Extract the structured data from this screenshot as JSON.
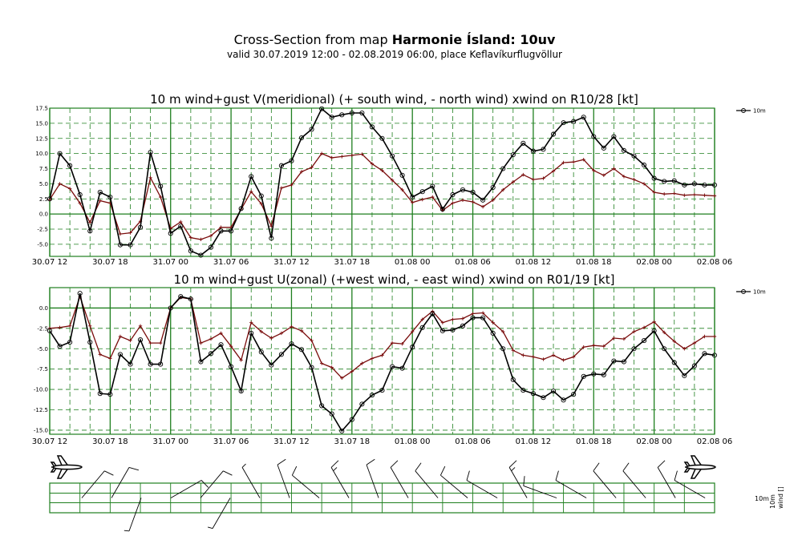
{
  "header": {
    "title_prefix": "Cross-Section from map ",
    "title_bold": "Harmonie Ísland: 10uv",
    "subtitle": "valid 30.07.2019 12:00 - 02.08.2019 06:00, place Keflavíkurflugvöllur"
  },
  "colors": {
    "grid": "#1e7f1e",
    "wind": "#000000",
    "gust": "#7a0c0c"
  },
  "x_ticks": [
    "30.07 12",
    "30.07 18",
    "31.07 00",
    "31.07 06",
    "31.07 12",
    "31.07 18",
    "01.08 00",
    "01.08 06",
    "01.08 12",
    "01.08 18",
    "02.08 00",
    "02.08 06"
  ],
  "chart_data": [
    {
      "type": "line",
      "title": "10 m wind+gust V(meridional) (+ south wind, - north wind) xwind on R10/28 [kt]",
      "x": "hourly steps from 30.07.2019 12:00 to 02.08.2019 06:00",
      "ylim": [
        -7,
        17.5
      ],
      "yticks": [
        "17.5",
        "15.0",
        "12.5",
        "10.0",
        "7.5",
        "5.0",
        "2.5",
        "0.0",
        "-2.5",
        "-5.0"
      ],
      "legend": "10m",
      "series": [
        {
          "name": "10m",
          "marker": "circle",
          "values": [
            2.5,
            10,
            8,
            3.2,
            -2.8,
            3.6,
            2.8,
            -5.1,
            -5.1,
            -2.2,
            10.2,
            4.6,
            -3.2,
            -2,
            -6.1,
            -6.8,
            -5.5,
            -2.8,
            -2.8,
            0.9,
            6.2,
            3,
            -4,
            8,
            8.8,
            12.6,
            14,
            17.4,
            16,
            16.4,
            16.7,
            16.7,
            14.4,
            12.5,
            9.6,
            6.4,
            2.8,
            3.7,
            4.6,
            0.8,
            3.2,
            4,
            3.6,
            2.3,
            4.4,
            7.5,
            9.8,
            11.7,
            10.4,
            10.7,
            13.2,
            15.1,
            15.3,
            16,
            12.8,
            10.9,
            12.8,
            10.5,
            9.6,
            8.1,
            5.9,
            5.4,
            5.5,
            4.8,
            5,
            4.8,
            4.8
          ]
        },
        {
          "name": "",
          "marker": "plus",
          "values": [
            2.4,
            5,
            4.2,
            1.8,
            -1.4,
            2.2,
            1.8,
            -3.3,
            -3.1,
            -1.2,
            6,
            2.8,
            -2.4,
            -1.3,
            -3.9,
            -4.2,
            -3.6,
            -2.2,
            -2.2,
            0.8,
            3.7,
            1.7,
            -2,
            4.3,
            4.8,
            7,
            7.7,
            10,
            9.3,
            9.5,
            9.7,
            9.9,
            8.3,
            7.2,
            5.6,
            4,
            1.9,
            2.4,
            2.8,
            0.6,
            1.8,
            2.3,
            2,
            1.2,
            2.3,
            4,
            5.3,
            6.5,
            5.7,
            5.9,
            7.1,
            8.5,
            8.6,
            9,
            7.2,
            6.4,
            7.5,
            6.2,
            5.7,
            5,
            3.6,
            3.3,
            3.4,
            3.1,
            3.2,
            3.1,
            3
          ]
        }
      ]
    },
    {
      "type": "line",
      "title": "10 m wind+gust U(zonal) (+west wind, - east wind) xwind on R01/19 [kt]",
      "x": "hourly steps from 30.07.2019 12:00 to 02.08.2019 06:00",
      "ylim": [
        -15.5,
        2.5
      ],
      "yticks": [
        "0.0",
        "-2.5",
        "-5.0",
        "-7.5",
        "-10.0",
        "-12.5",
        "-15.0"
      ],
      "legend": "10m",
      "series": [
        {
          "name": "10m",
          "marker": "circle",
          "values": [
            -2.8,
            -4.7,
            -4.2,
            1.8,
            -4.2,
            -10.5,
            -10.6,
            -5.7,
            -6.9,
            -3.9,
            -6.9,
            -6.9,
            0,
            1.4,
            1.1,
            -6.6,
            -5.6,
            -4.5,
            -7.2,
            -10.2,
            -3.1,
            -5.4,
            -7,
            -5.7,
            -4.4,
            -5.1,
            -7.3,
            -12,
            -13,
            -15.1,
            -13.7,
            -11.8,
            -10.7,
            -10.1,
            -7.2,
            -7.4,
            -4.8,
            -2.4,
            -0.7,
            -2.8,
            -2.7,
            -2.2,
            -1.2,
            -1.2,
            -3.1,
            -5,
            -8.8,
            -10.1,
            -10.5,
            -11,
            -10.2,
            -11.3,
            -10.6,
            -8.4,
            -8.1,
            -8.2,
            -6.5,
            -6.6,
            -5,
            -4,
            -2.8,
            -5,
            -6.7,
            -8.3,
            -7.1,
            -5.6,
            -5.8
          ]
        },
        {
          "name": "",
          "marker": "plus",
          "values": [
            -2.5,
            -2.4,
            -2.2,
            1.4,
            -2.2,
            -5.7,
            -6.2,
            -3.5,
            -4,
            -2.2,
            -4.3,
            -4.3,
            0,
            1.3,
            1.1,
            -4.3,
            -3.8,
            -3.1,
            -4.7,
            -6.4,
            -1.8,
            -2.9,
            -3.7,
            -3.1,
            -2.3,
            -2.8,
            -4,
            -6.8,
            -7.3,
            -8.6,
            -7.8,
            -6.8,
            -6.2,
            -5.8,
            -4.3,
            -4.4,
            -2.9,
            -1.4,
            -0.4,
            -1.8,
            -1.4,
            -1.3,
            -0.7,
            -0.6,
            -1.8,
            -2.9,
            -5.2,
            -5.8,
            -6,
            -6.3,
            -5.8,
            -6.4,
            -6,
            -4.8,
            -4.6,
            -4.7,
            -3.7,
            -3.8,
            -2.9,
            -2.4,
            -1.7,
            -3,
            -4.1,
            -5,
            -4.3,
            -3.5,
            -3.5
          ]
        }
      ]
    }
  ],
  "wind_panel": {
    "legend_left": "10m",
    "legend_right": "10m\nwind []",
    "barbs": [
      {
        "dir": 40,
        "speed": 10
      },
      {
        "dir": 30,
        "speed": 12
      },
      {
        "dir": 200,
        "speed": 8
      },
      {
        "dir": 60,
        "speed": 10
      },
      {
        "dir": 40,
        "speed": 11
      },
      {
        "dir": 210,
        "speed": 7
      },
      {
        "dir": 330,
        "speed": 9
      },
      {
        "dir": 340,
        "speed": 12
      },
      {
        "dir": 310,
        "speed": 14
      },
      {
        "dir": 330,
        "speed": 15
      },
      {
        "dir": 340,
        "speed": 14
      },
      {
        "dir": 330,
        "speed": 11
      },
      {
        "dir": 320,
        "speed": 10
      },
      {
        "dir": 310,
        "speed": 12
      },
      {
        "dir": 300,
        "speed": 12
      },
      {
        "dir": 330,
        "speed": 16
      },
      {
        "dir": 290,
        "speed": 14
      },
      {
        "dir": 300,
        "speed": 10
      },
      {
        "dir": 320,
        "speed": 12
      },
      {
        "dir": 320,
        "speed": 10
      },
      {
        "dir": 330,
        "speed": 10
      },
      {
        "dir": 300,
        "speed": 10
      }
    ]
  }
}
